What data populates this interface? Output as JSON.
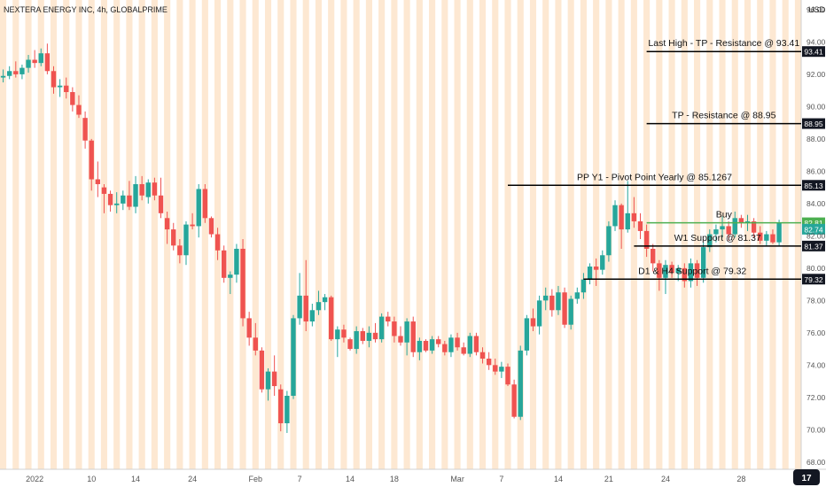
{
  "chart_data": {
    "type": "candlestick",
    "title": "NEXTERA ENERGY INC, 4h, GLOBALPRIME",
    "currency": "USD",
    "ylim": [
      67.55,
      96.6
    ],
    "y_ticks": [
      "68.00",
      "70.00",
      "72.00",
      "74.00",
      "76.00",
      "78.00",
      "80.00",
      "82.00",
      "84.00",
      "86.00",
      "88.00",
      "90.00",
      "92.00",
      "94.00",
      "96.00"
    ],
    "x_ticks": [
      {
        "label": "2022",
        "bar": 5
      },
      {
        "label": "10",
        "bar": 14
      },
      {
        "label": "14",
        "bar": 21
      },
      {
        "label": "24",
        "bar": 30
      },
      {
        "label": "Feb",
        "bar": 40
      },
      {
        "label": "7",
        "bar": 47
      },
      {
        "label": "14",
        "bar": 55
      },
      {
        "label": "18",
        "bar": 62
      },
      {
        "label": "Mar",
        "bar": 72
      },
      {
        "label": "7",
        "bar": 79
      },
      {
        "label": "14",
        "bar": 88
      },
      {
        "label": "21",
        "bar": 96
      },
      {
        "label": "24",
        "bar": 105
      },
      {
        "label": "28",
        "bar": 117
      }
    ],
    "bars_visible": 127,
    "candles": [
      [
        91.8,
        92.3,
        91.5,
        91.9
      ],
      [
        91.9,
        92.5,
        91.7,
        92.2
      ],
      [
        92.2,
        92.8,
        91.8,
        92.0
      ],
      [
        92.0,
        92.6,
        91.7,
        92.4
      ],
      [
        92.4,
        93.2,
        92.1,
        92.9
      ],
      [
        92.9,
        93.5,
        92.4,
        92.7
      ],
      [
        92.7,
        93.6,
        92.5,
        93.3
      ],
      [
        93.3,
        93.9,
        92.0,
        92.2
      ],
      [
        92.2,
        92.5,
        90.8,
        91.2
      ],
      [
        91.2,
        91.7,
        90.6,
        91.3
      ],
      [
        91.3,
        91.8,
        90.5,
        90.9
      ],
      [
        90.9,
        91.2,
        89.7,
        90.1
      ],
      [
        90.1,
        90.7,
        89.3,
        89.5
      ],
      [
        89.3,
        89.7,
        87.4,
        87.9
      ],
      [
        87.9,
        88.0,
        84.8,
        85.5
      ],
      [
        85.5,
        86.6,
        84.4,
        85.2
      ],
      [
        85.0,
        85.2,
        83.4,
        84.6
      ],
      [
        84.6,
        84.8,
        83.5,
        83.9
      ],
      [
        83.9,
        84.7,
        83.4,
        84.0
      ],
      [
        84.0,
        84.8,
        83.6,
        84.5
      ],
      [
        84.5,
        85.4,
        83.6,
        83.8
      ],
      [
        83.8,
        85.7,
        83.4,
        85.2
      ],
      [
        85.2,
        85.7,
        84.2,
        84.5
      ],
      [
        84.4,
        85.5,
        84.0,
        85.3
      ],
      [
        85.3,
        85.6,
        84.2,
        84.5
      ],
      [
        84.5,
        85.6,
        83.1,
        83.4
      ],
      [
        83.1,
        83.5,
        81.5,
        82.4
      ],
      [
        82.4,
        82.8,
        81.1,
        81.4
      ],
      [
        81.4,
        81.8,
        80.3,
        80.8
      ],
      [
        80.8,
        82.9,
        80.2,
        82.7
      ],
      [
        82.7,
        83.4,
        82.4,
        82.6
      ],
      [
        82.6,
        85.2,
        81.9,
        84.9
      ],
      [
        84.9,
        85.2,
        82.8,
        83.1
      ],
      [
        83.1,
        83.2,
        81.9,
        82.1
      ],
      [
        82.1,
        82.5,
        80.5,
        81.1
      ],
      [
        81.1,
        81.4,
        79.1,
        79.4
      ],
      [
        79.4,
        79.8,
        78.4,
        79.6
      ],
      [
        79.6,
        81.5,
        79.1,
        81.2
      ],
      [
        81.2,
        81.8,
        76.4,
        76.9
      ],
      [
        76.9,
        77.3,
        75.2,
        75.7
      ],
      [
        75.7,
        76.6,
        74.6,
        74.9
      ],
      [
        74.9,
        75.1,
        72.3,
        72.5
      ],
      [
        72.5,
        73.8,
        71.8,
        73.6
      ],
      [
        73.6,
        74.6,
        72.1,
        72.7
      ],
      [
        72.5,
        72.8,
        69.9,
        70.4
      ],
      [
        70.4,
        72.4,
        69.8,
        72.1
      ],
      [
        72.1,
        77.1,
        71.9,
        76.9
      ],
      [
        76.9,
        79.7,
        76.5,
        78.3
      ],
      [
        78.3,
        80.5,
        76.1,
        76.7
      ],
      [
        76.7,
        77.8,
        76.4,
        77.4
      ],
      [
        77.4,
        78.6,
        77.1,
        77.9
      ],
      [
        77.9,
        78.4,
        77.4,
        78.2
      ],
      [
        78.2,
        78.3,
        75.5,
        75.6
      ],
      [
        75.6,
        76.4,
        74.5,
        76.2
      ],
      [
        76.2,
        76.5,
        75.4,
        75.7
      ],
      [
        75.6,
        75.7,
        74.9,
        75.0
      ],
      [
        75.0,
        76.4,
        74.7,
        76.1
      ],
      [
        76.1,
        76.3,
        75.3,
        75.5
      ],
      [
        75.5,
        76.4,
        75.1,
        76.0
      ],
      [
        76.0,
        76.6,
        75.4,
        75.6
      ],
      [
        75.6,
        77.2,
        75.4,
        77.0
      ],
      [
        77.0,
        77.3,
        76.4,
        76.7
      ],
      [
        76.7,
        77.0,
        75.4,
        75.8
      ],
      [
        75.8,
        76.4,
        75.2,
        75.4
      ],
      [
        75.4,
        76.9,
        74.6,
        76.7
      ],
      [
        76.7,
        77.0,
        74.5,
        74.8
      ],
      [
        74.8,
        75.7,
        74.3,
        75.5
      ],
      [
        75.5,
        75.6,
        74.8,
        74.9
      ],
      [
        74.9,
        75.8,
        74.7,
        75.6
      ],
      [
        75.6,
        75.8,
        75.1,
        75.3
      ],
      [
        75.3,
        75.5,
        74.6,
        74.8
      ],
      [
        74.8,
        75.9,
        74.5,
        75.7
      ],
      [
        75.7,
        76.0,
        74.9,
        75.1
      ],
      [
        75.1,
        75.4,
        74.6,
        74.7
      ],
      [
        74.7,
        76.0,
        74.5,
        75.8
      ],
      [
        75.8,
        76.0,
        74.6,
        74.8
      ],
      [
        74.8,
        75.1,
        74.1,
        74.4
      ],
      [
        74.4,
        74.8,
        73.7,
        74.0
      ],
      [
        74.0,
        74.4,
        73.4,
        73.6
      ],
      [
        73.6,
        74.2,
        73.2,
        73.9
      ],
      [
        73.9,
        74.1,
        72.7,
        72.8
      ],
      [
        72.8,
        73.1,
        70.7,
        70.8
      ],
      [
        70.8,
        75.2,
        70.6,
        74.9
      ],
      [
        74.9,
        77.1,
        74.6,
        76.9
      ],
      [
        76.9,
        77.5,
        76.1,
        76.4
      ],
      [
        76.4,
        78.3,
        75.9,
        78.0
      ],
      [
        78.0,
        78.8,
        77.4,
        78.3
      ],
      [
        78.3,
        78.7,
        77.0,
        77.4
      ],
      [
        77.4,
        78.9,
        77.1,
        78.5
      ],
      [
        78.5,
        78.8,
        76.3,
        76.5
      ],
      [
        76.5,
        78.3,
        76.2,
        78.1
      ],
      [
        78.1,
        78.8,
        77.8,
        78.5
      ],
      [
        78.5,
        79.7,
        78.1,
        79.3
      ],
      [
        79.3,
        80.3,
        79.0,
        80.1
      ],
      [
        80.1,
        80.6,
        78.9,
        79.9
      ],
      [
        79.9,
        81.1,
        79.6,
        80.8
      ],
      [
        80.8,
        82.9,
        80.4,
        82.6
      ],
      [
        82.6,
        84.2,
        82.3,
        83.9
      ],
      [
        83.9,
        84.0,
        81.2,
        82.4
      ],
      [
        82.4,
        85.4,
        82.2,
        83.4
      ],
      [
        83.4,
        84.4,
        82.5,
        82.9
      ],
      [
        82.9,
        83.4,
        81.8,
        82.3
      ],
      [
        82.3,
        82.7,
        80.7,
        81.2
      ],
      [
        81.2,
        81.5,
        79.8,
        80.3
      ],
      [
        80.3,
        80.5,
        78.6,
        79.4
      ],
      [
        79.4,
        80.5,
        78.4,
        80.2
      ],
      [
        80.2,
        80.4,
        79.4,
        79.7
      ],
      [
        79.7,
        80.2,
        79.2,
        80.0
      ],
      [
        80.0,
        80.3,
        78.8,
        79.2
      ],
      [
        79.2,
        80.6,
        78.8,
        80.3
      ],
      [
        80.3,
        80.5,
        78.9,
        79.4
      ],
      [
        79.4,
        81.6,
        79.1,
        81.3
      ],
      [
        81.3,
        82.4,
        81.0,
        82.1
      ],
      [
        82.1,
        82.7,
        81.6,
        82.4
      ],
      [
        82.4,
        83.2,
        81.9,
        82.6
      ],
      [
        82.6,
        82.9,
        81.7,
        82.1
      ],
      [
        82.1,
        83.5,
        81.9,
        83.1
      ],
      [
        83.1,
        83.3,
        82.5,
        82.8
      ],
      [
        82.8,
        83.3,
        82.3,
        82.9
      ],
      [
        82.9,
        83.1,
        81.9,
        82.2
      ],
      [
        82.2,
        82.6,
        81.5,
        81.7
      ],
      [
        81.7,
        82.3,
        81.4,
        82.1
      ],
      [
        82.1,
        82.4,
        81.5,
        81.6
      ],
      [
        81.6,
        83.0,
        81.4,
        82.8
      ]
    ],
    "levels": [
      {
        "label": "Last High - TP - Resistance @ 93.41",
        "value": 93.41,
        "tag": "93.41",
        "color": "#000000",
        "from_bar": 102
      },
      {
        "label": "TP - Resistance @ 88.95",
        "value": 88.95,
        "tag": "88.95",
        "color": "#000000",
        "from_bar": 102
      },
      {
        "label": "PP Y1 - Pivot Point Yearly @ 85.1267",
        "value": 85.13,
        "tag": "85.13",
        "color": "#000000",
        "from_bar": 80
      },
      {
        "label": "Buy",
        "value": 82.81,
        "tag": "82.81",
        "color": "#4caf50",
        "from_bar": 102
      },
      {
        "label": "W1 Support @ 81.37",
        "value": 81.37,
        "tag": "81.37",
        "color": "#000000",
        "from_bar": 100
      },
      {
        "label": "D1 & H4 Support @ 79.32",
        "value": 79.32,
        "tag": "79.32",
        "color": "#000000",
        "from_bar": 92
      }
    ],
    "last_price": {
      "value": 82.74,
      "tag": "82.74"
    },
    "colors": {
      "up": "#26a69a",
      "down": "#ef5350",
      "session_band": "#fde8d2",
      "axis_text": "#555555"
    }
  },
  "badge": {
    "tag": "17"
  }
}
